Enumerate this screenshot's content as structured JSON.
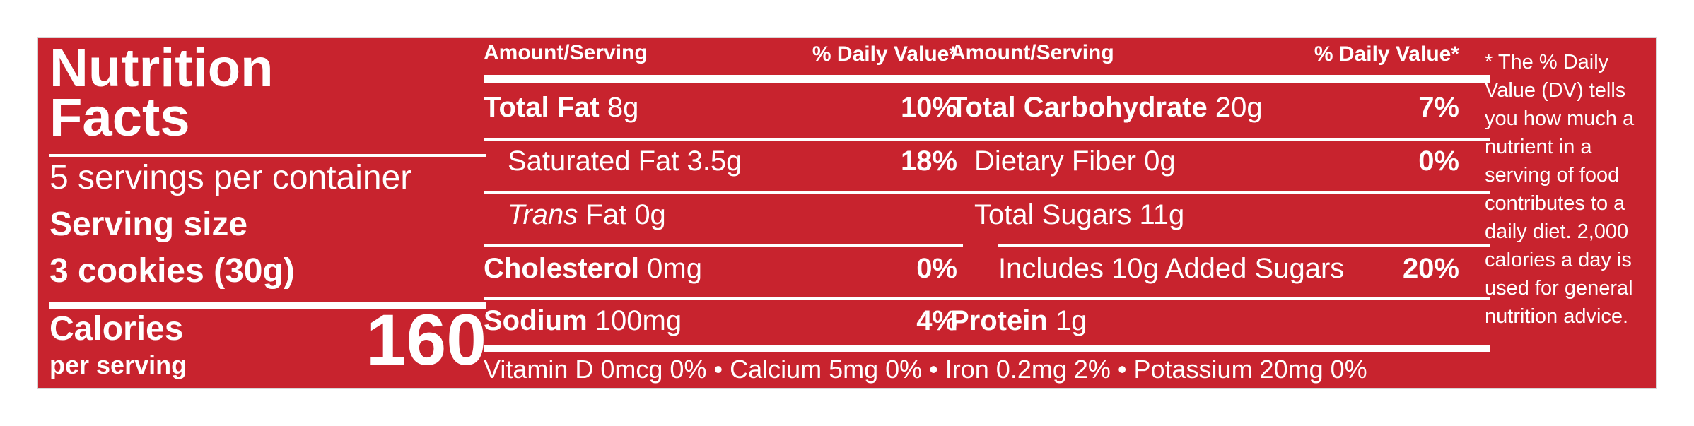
{
  "panel": {
    "title_line1": "Nutrition",
    "title_line2": "Facts",
    "servings": "5 servings per container",
    "serving_size_label": "Serving size",
    "serving_size_value": "3 cookies (30g)",
    "calories_label": "Calories",
    "per_serving": "per serving",
    "calories_value": "160"
  },
  "left_table": {
    "amount_header": "Amount/Serving",
    "dv_header": "% Daily Value*",
    "rows": [
      {
        "name": "Total Fat",
        "amount": "8g",
        "dv": "10%"
      },
      {
        "name": "Saturated Fat",
        "amount": "3.5g",
        "dv": "18%"
      },
      {
        "name": "Trans",
        "amount": "Fat 0g",
        "dv": ""
      },
      {
        "name": "Cholesterol",
        "amount": "0mg",
        "dv": "0%"
      },
      {
        "name": "Sodium",
        "amount": "100mg",
        "dv": "4%"
      }
    ]
  },
  "right_table": {
    "amount_header": "Amount/Serving",
    "dv_header": "% Daily Value*",
    "rows": [
      {
        "name": "Total Carbohydrate",
        "amount": "20g",
        "dv": "7%"
      },
      {
        "name": "Dietary Fiber",
        "amount": "0g",
        "dv": "0%"
      },
      {
        "name": "Total Sugars",
        "amount": "11g",
        "dv": ""
      },
      {
        "name": "Includes 10g Added Sugars",
        "amount": "",
        "dv": "20%"
      },
      {
        "name": "Protein",
        "amount": "1g",
        "dv": ""
      }
    ]
  },
  "vitamins": "Vitamin D 0mcg 0% • Calcium 5mg 0% • Iron 0.2mg 2% • Potassium 20mg 0%",
  "footnote": "* The % Daily Value (DV) tells you how much a nutrient in a serving of food contributes to a daily diet. 2,000 calories a day is used for general nutrition advice.",
  "colors": {
    "background": "#c8232e",
    "text": "#ffffff"
  }
}
